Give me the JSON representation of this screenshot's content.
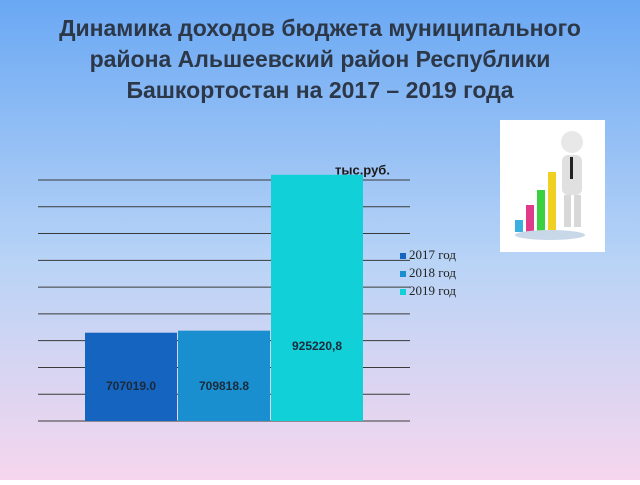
{
  "chart_data": {
    "type": "bar",
    "title": [
      "Динамика доходов бюджета муниципального",
      "района Альшеевский район Республики",
      "Башкортостан на 2017 – 2019 года"
    ],
    "unit_label": "тыс.руб.",
    "categories": [
      null
    ],
    "series": [
      {
        "name": "2017 год",
        "color": "#1565c0",
        "values": [
          707019.0
        ],
        "value_labels": [
          "707019.0"
        ]
      },
      {
        "name": "2018 год",
        "color": "#1a8fd0",
        "values": [
          709818.8
        ],
        "value_labels": [
          "709818.8"
        ]
      },
      {
        "name": "2019 год",
        "color": "#12d0d8",
        "values": [
          925220.8
        ],
        "value_labels": [
          "925220,8"
        ]
      }
    ],
    "ylim": [
      585000,
      918000
    ],
    "yticks": [
      585000,
      622000,
      659000,
      696000,
      733000,
      770000,
      807000,
      844000,
      881000,
      918000
    ],
    "grid": true,
    "tick_labels": false,
    "legend": "right"
  }
}
